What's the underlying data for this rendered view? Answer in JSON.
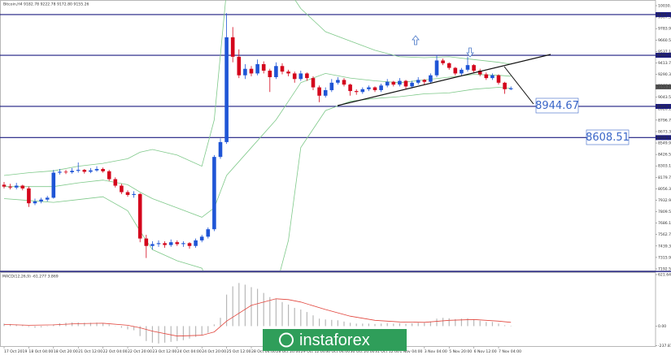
{
  "chart_data": {
    "type": "candlestick",
    "title": "Bitcoin,H4  9182.78 9222.78 9172.80 9155.26",
    "up_color": "#1f55d6",
    "down_color": "#d4061c",
    "ylim": [
      7192.5,
      10030.7
    ],
    "yticks": [
      {
        "value": 10030.7,
        "label": "10030.70"
      },
      {
        "value": 9907.3,
        "label": "9907.30"
      },
      {
        "value": 9783.9,
        "label": "9783.90"
      },
      {
        "value": 9660.5,
        "label": "9660.50"
      },
      {
        "value": 9537.1,
        "label": "9537.10"
      },
      {
        "value": 9413.7,
        "label": "9413.70"
      },
      {
        "value": 9290.3,
        "label": "9290.30"
      },
      {
        "value": 9166.9,
        "label": "9166.90"
      },
      {
        "value": 9043.5,
        "label": "9043.50"
      },
      {
        "value": 8920.1,
        "label": "8920.10"
      },
      {
        "value": 8796.7,
        "label": "8796.70"
      },
      {
        "value": 8673.3,
        "label": "8673.30"
      },
      {
        "value": 8549.9,
        "label": "8549.90"
      },
      {
        "value": 8426.5,
        "label": "8426.50"
      },
      {
        "value": 8303.1,
        "label": "8303.10"
      },
      {
        "value": 8179.7,
        "label": "8179.70"
      },
      {
        "value": 8056.3,
        "label": "8056.30"
      },
      {
        "value": 7932.9,
        "label": "7932.90"
      },
      {
        "value": 7809.5,
        "label": "7809.50"
      },
      {
        "value": 7686.1,
        "label": "7686.10"
      },
      {
        "value": 7562.7,
        "label": "7562.70"
      },
      {
        "value": 7439.3,
        "label": "7439.30"
      },
      {
        "value": 7315.9,
        "label": "7315.90"
      },
      {
        "value": 7192.5,
        "label": "7192.50"
      }
    ],
    "xticks": [
      {
        "value": 0,
        "label": "17 Oct 2019"
      },
      {
        "value": 4,
        "label": "18 Oct 04:00"
      },
      {
        "value": 8,
        "label": "18 Oct 20:00"
      },
      {
        "value": 12,
        "label": "21 Oct 12:00"
      },
      {
        "value": 16,
        "label": "22 Oct 04:00"
      },
      {
        "value": 20,
        "label": "22 Oct 20:00"
      },
      {
        "value": 24,
        "label": "23 Oct 12:00"
      },
      {
        "value": 28,
        "label": "24 Oct 04:00"
      },
      {
        "value": 32,
        "label": "24 Oct 20:00"
      },
      {
        "value": 36,
        "label": "25 Oct 12:00"
      },
      {
        "value": 40,
        "label": "28 Oct 04:00"
      },
      {
        "value": 44,
        "label": "28 Oct 20:00"
      },
      {
        "value": 48,
        "label": "29 Oct 12:00"
      },
      {
        "value": 52,
        "label": "30 Oct 04:00"
      },
      {
        "value": 56,
        "label": "30 Oct 20:00"
      },
      {
        "value": 60,
        "label": "31 Oct 12:00"
      },
      {
        "value": 64,
        "label": "1 Nov 04:00"
      },
      {
        "value": 68,
        "label": "3 Nov 04:00"
      },
      {
        "value": 72,
        "label": "5 Nov 20:00"
      },
      {
        "value": 76,
        "label": "6 Nov 12:00"
      },
      {
        "value": 80,
        "label": "7 Nov 04:00"
      }
    ],
    "candles": [
      [
        8100,
        8130,
        8060,
        8080
      ],
      [
        8080,
        8110,
        8050,
        8070
      ],
      [
        8070,
        8120,
        8050,
        8090
      ],
      [
        8090,
        8100,
        8040,
        8060
      ],
      [
        8060,
        8080,
        7860,
        7900
      ],
      [
        7900,
        7950,
        7880,
        7920
      ],
      [
        7920,
        7960,
        7900,
        7940
      ],
      [
        7940,
        7980,
        7920,
        7960
      ],
      [
        7960,
        8260,
        7950,
        8230
      ],
      [
        8230,
        8270,
        8210,
        8240
      ],
      [
        8240,
        8260,
        8215,
        8235
      ],
      [
        8235,
        8280,
        8220,
        8250
      ],
      [
        8250,
        8340,
        8230,
        8260
      ],
      [
        8260,
        8270,
        8220,
        8240
      ],
      [
        8240,
        8280,
        8225,
        8255
      ],
      [
        8255,
        8300,
        8240,
        8270
      ],
      [
        8270,
        8285,
        8230,
        8245
      ],
      [
        8245,
        8260,
        8140,
        8160
      ],
      [
        8160,
        8180,
        8070,
        8090
      ],
      [
        8090,
        8110,
        8000,
        8020
      ],
      [
        8020,
        8040,
        7970,
        7990
      ],
      [
        7990,
        8030,
        7960,
        8000
      ],
      [
        8000,
        8010,
        7480,
        7520
      ],
      [
        7520,
        7560,
        7310,
        7440
      ],
      [
        7440,
        7490,
        7400,
        7460
      ],
      [
        7460,
        7500,
        7430,
        7470
      ],
      [
        7470,
        7490,
        7420,
        7450
      ],
      [
        7450,
        7510,
        7430,
        7480
      ],
      [
        7480,
        7500,
        7440,
        7460
      ],
      [
        7460,
        7490,
        7430,
        7470
      ],
      [
        7470,
        7480,
        7410,
        7440
      ],
      [
        7440,
        7520,
        7420,
        7500
      ],
      [
        7500,
        7560,
        7480,
        7540
      ],
      [
        7540,
        7640,
        7520,
        7620
      ],
      [
        7620,
        8420,
        7600,
        8400
      ],
      [
        8400,
        8600,
        8380,
        8560
      ],
      [
        8560,
        9950,
        8540,
        9690
      ],
      [
        9690,
        9800,
        9420,
        9480
      ],
      [
        9480,
        9560,
        9250,
        9280
      ],
      [
        9280,
        9400,
        9240,
        9350
      ],
      [
        9350,
        9380,
        9270,
        9300
      ],
      [
        9300,
        9450,
        9280,
        9400
      ],
      [
        9400,
        9430,
        9300,
        9330
      ],
      [
        9330,
        9350,
        9100,
        9260
      ],
      [
        9260,
        9420,
        9240,
        9380
      ],
      [
        9380,
        9410,
        9290,
        9320
      ],
      [
        9320,
        9340,
        9270,
        9300
      ],
      [
        9300,
        9320,
        9200,
        9240
      ],
      [
        9240,
        9330,
        9220,
        9300
      ],
      [
        9300,
        9310,
        9220,
        9250
      ],
      [
        9250,
        9270,
        9120,
        9150
      ],
      [
        9150,
        9170,
        8990,
        9060
      ],
      [
        9060,
        9150,
        9040,
        9120
      ],
      [
        9120,
        9240,
        9100,
        9200
      ],
      [
        9200,
        9260,
        9180,
        9230
      ],
      [
        9230,
        9250,
        9160,
        9180
      ],
      [
        9180,
        9190,
        9060,
        9110
      ],
      [
        9110,
        9130,
        9070,
        9100
      ],
      [
        9100,
        9150,
        9080,
        9130
      ],
      [
        9130,
        9170,
        9110,
        9150
      ],
      [
        9150,
        9160,
        9100,
        9120
      ],
      [
        9120,
        9190,
        9100,
        9170
      ],
      [
        9170,
        9240,
        9150,
        9210
      ],
      [
        9210,
        9220,
        9160,
        9180
      ],
      [
        9180,
        9250,
        9160,
        9220
      ],
      [
        9220,
        9230,
        9130,
        9160
      ],
      [
        9160,
        9220,
        9140,
        9200
      ],
      [
        9200,
        9260,
        9180,
        9230
      ],
      [
        9230,
        9240,
        9180,
        9210
      ],
      [
        9210,
        9300,
        9190,
        9280
      ],
      [
        9280,
        9500,
        9260,
        9440
      ],
      [
        9440,
        9460,
        9390,
        9410
      ],
      [
        9410,
        9420,
        9340,
        9360
      ],
      [
        9360,
        9370,
        9280,
        9300
      ],
      [
        9300,
        9360,
        9280,
        9340
      ],
      [
        9340,
        9480,
        9320,
        9390
      ],
      [
        9390,
        9400,
        9310,
        9330
      ],
      [
        9330,
        9350,
        9270,
        9290
      ],
      [
        9290,
        9310,
        9230,
        9250
      ],
      [
        9250,
        9300,
        9230,
        9280
      ],
      [
        9280,
        9290,
        9180,
        9200
      ],
      [
        9200,
        9210,
        9080,
        9130
      ],
      [
        9130,
        9160,
        9120,
        9140
      ]
    ],
    "bands": {
      "x": [
        0,
        4,
        8,
        12,
        16,
        20,
        22,
        24,
        28,
        32,
        34,
        36,
        40,
        44,
        46,
        48,
        52,
        56,
        60,
        64,
        68,
        72,
        76,
        80,
        82
      ],
      "color": "#7fc98a",
      "series": [
        {
          "values": [
            8200,
            8230,
            8250,
            8300,
            8330,
            8380,
            8450,
            8480,
            8420,
            8300,
            8800,
            10200,
            10500,
            10400,
            10200,
            10000,
            9750,
            9650,
            9550,
            9480,
            9470,
            9480,
            9450,
            9420,
            9400
          ]
        },
        {
          "values": [
            8080,
            8080,
            8080,
            8120,
            8150,
            8100,
            8020,
            7950,
            7850,
            7750,
            7850,
            8200,
            8500,
            8800,
            9000,
            9200,
            9300,
            9250,
            9220,
            9200,
            9230,
            9260,
            9290,
            9280,
            9270
          ]
        },
        {
          "values": [
            7950,
            7930,
            7910,
            7940,
            7970,
            7820,
            7600,
            7400,
            7280,
            7200,
            6900,
            6200,
            6500,
            7000,
            7500,
            8500,
            8900,
            9000,
            9030,
            9050,
            9080,
            9090,
            9130,
            9150,
            9140
          ]
        }
      ]
    },
    "levels": [
      {
        "value": 9934.73,
        "label": "9934.73"
      },
      {
        "value": 9496.2,
        "label": "9496.20"
      },
      {
        "value": 8944.67,
        "label": "8944.67"
      },
      {
        "value": 8608.51,
        "label": "8608.51"
      }
    ],
    "level_color": "#1c1c80",
    "last": {
      "value": 9155.26,
      "label": "9155.26"
    },
    "annotations": [
      "8944.67",
      "8608.51"
    ],
    "macd": {
      "label": "MACD(12,26,9) -61.277 3.869",
      "ylim": [
        -237.876,
        621.647
      ],
      "yticks": [
        {
          "value": 621.647,
          "label": "621.647"
        },
        {
          "value": 0,
          "label": "0.00"
        },
        {
          "value": -237.876,
          "label": "-237.876"
        }
      ],
      "histogram_color": "#b8b8b8",
      "histogram": [
        30,
        25,
        20,
        15,
        -10,
        -20,
        -15,
        -5,
        20,
        35,
        40,
        45,
        45,
        40,
        40,
        42,
        35,
        20,
        0,
        -20,
        -40,
        -50,
        -120,
        -180,
        -200,
        -210,
        -200,
        -190,
        -180,
        -170,
        -150,
        -130,
        -110,
        -80,
        20,
        100,
        380,
        480,
        520,
        500,
        470,
        450,
        400,
        350,
        330,
        290,
        260,
        220,
        200,
        170,
        130,
        90,
        80,
        75,
        70,
        55,
        40,
        30,
        30,
        30,
        25,
        30,
        35,
        30,
        35,
        30,
        35,
        40,
        40,
        55,
        90,
        100,
        95,
        85,
        90,
        95,
        80,
        65,
        50,
        50,
        30,
        10,
        5
      ],
      "signal": {
        "color": "#e2453c",
        "x": [
          0,
          4,
          8,
          12,
          16,
          20,
          22,
          24,
          28,
          32,
          34,
          36,
          40,
          44,
          46,
          48,
          52,
          56,
          60,
          64,
          68,
          72,
          76,
          80,
          82
        ],
        "values": [
          20,
          10,
          15,
          30,
          35,
          10,
          -20,
          -60,
          -120,
          -110,
          -70,
          60,
          250,
          330,
          320,
          290,
          200,
          120,
          70,
          50,
          45,
          70,
          80,
          60,
          45
        ]
      }
    },
    "watermark": "instaforex"
  }
}
